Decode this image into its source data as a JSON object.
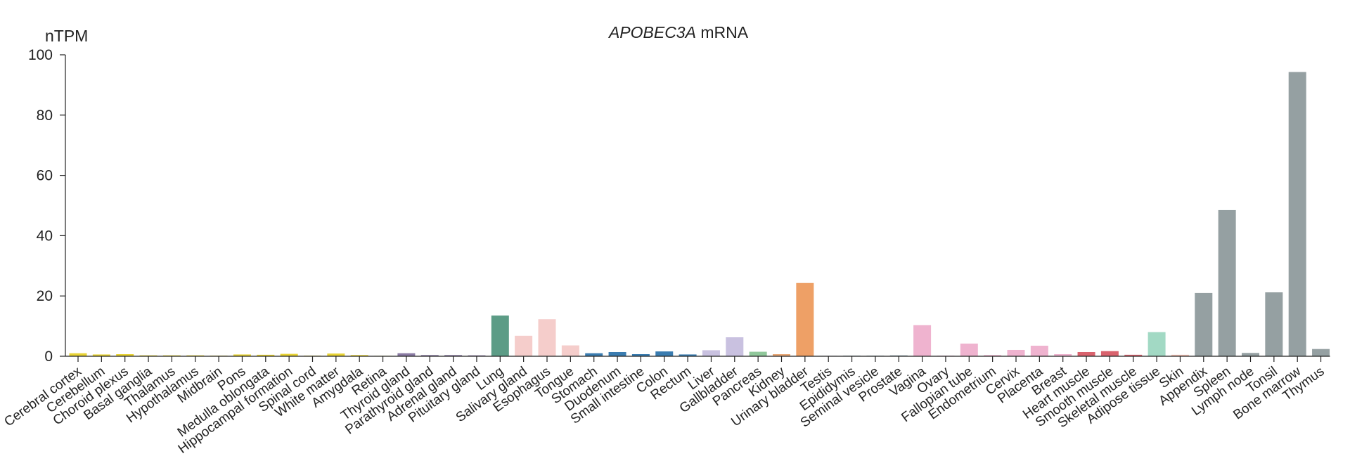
{
  "chart_data": {
    "type": "bar",
    "title_gene": "APOBEC3A",
    "title_suffix": " mRNA",
    "ylabel": "nTPM",
    "ylim": [
      0,
      100
    ],
    "yticks": [
      0,
      20,
      40,
      60,
      80,
      100
    ],
    "grid": false,
    "categories": [
      "Cerebral cortex",
      "Cerebellum",
      "Choroid plexus",
      "Basal ganglia",
      "Thalamus",
      "Hypothalamus",
      "Midbrain",
      "Pons",
      "Medulla oblongata",
      "Hippocampal formation",
      "Spinal cord",
      "White matter",
      "Amygdala",
      "Retina",
      "Thyroid gland",
      "Parathyroid gland",
      "Adrenal gland",
      "Pituitary gland",
      "Lung",
      "Salivary gland",
      "Esophagus",
      "Tongue",
      "Stomach",
      "Duodenum",
      "Small intestine",
      "Colon",
      "Rectum",
      "Liver",
      "Gallbladder",
      "Pancreas",
      "Kidney",
      "Urinary bladder",
      "Testis",
      "Epididymis",
      "Seminal vesicle",
      "Prostate",
      "Vagina",
      "Ovary",
      "Fallopian tube",
      "Endometrium",
      "Cervix",
      "Placenta",
      "Breast",
      "Heart muscle",
      "Smooth muscle",
      "Skeletal muscle",
      "Adipose tissue",
      "Skin",
      "Appendix",
      "Spleen",
      "Lymph node",
      "Tonsil",
      "Bone marrow",
      "Thymus"
    ],
    "values": [
      1.0,
      0.6,
      0.7,
      0.3,
      0.3,
      0.3,
      0.2,
      0.6,
      0.5,
      0.8,
      0.2,
      0.9,
      0.4,
      0.1,
      1.0,
      0.4,
      0.4,
      0.3,
      13.5,
      6.8,
      12.3,
      3.6,
      1.0,
      1.4,
      0.7,
      1.6,
      0.6,
      2.0,
      6.3,
      1.5,
      0.7,
      24.3,
      0.1,
      0.2,
      0.2,
      0.3,
      10.3,
      0.2,
      4.2,
      0.4,
      2.1,
      3.5,
      0.7,
      1.4,
      1.7,
      0.5,
      8.0,
      0.5,
      21.0,
      48.5,
      1.1,
      21.2,
      94.3,
      2.4
    ],
    "colors": [
      "#e8d335",
      "#e8d335",
      "#e8d335",
      "#e8d335",
      "#e8d335",
      "#e8d335",
      "#e8d335",
      "#e8d335",
      "#e8d335",
      "#e8d335",
      "#e8d335",
      "#e8d335",
      "#e8d335",
      "#e8d335",
      "#8a7aa3",
      "#8a7aa3",
      "#8a7aa3",
      "#8a7aa3",
      "#5c9c86",
      "#f5cdcb",
      "#f5cdcb",
      "#f5cdcb",
      "#3a7cb0",
      "#3a7cb0",
      "#3a7cb0",
      "#3a7cb0",
      "#3a7cb0",
      "#c9c1e0",
      "#c9c1e0",
      "#8fc79a",
      "#e9a877",
      "#eea066",
      "#9ab0ba",
      "#9ab0ba",
      "#9ab0ba",
      "#9ab0ba",
      "#efb3cf",
      "#efb3cf",
      "#efb3cf",
      "#efb3cf",
      "#efb3cf",
      "#efb3cf",
      "#efb3cf",
      "#d9626d",
      "#d9626d",
      "#d9626d",
      "#a2d9c4",
      "#f2c0b2",
      "#95a0a2",
      "#95a0a2",
      "#95a0a2",
      "#95a0a2",
      "#95a0a2",
      "#95a0a2"
    ]
  }
}
